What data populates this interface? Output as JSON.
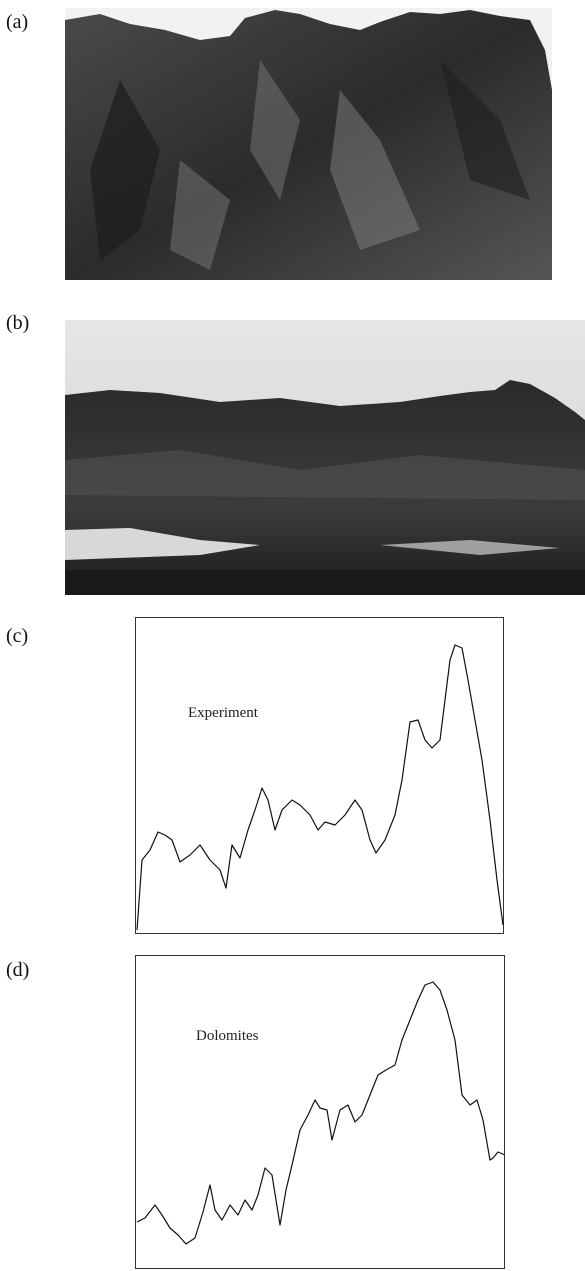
{
  "panels": [
    {
      "label": "(a)"
    },
    {
      "label": "(b)"
    },
    {
      "label": "(c)",
      "caption": "Experiment"
    },
    {
      "label": "(d)",
      "caption": "Dolomites"
    }
  ]
}
